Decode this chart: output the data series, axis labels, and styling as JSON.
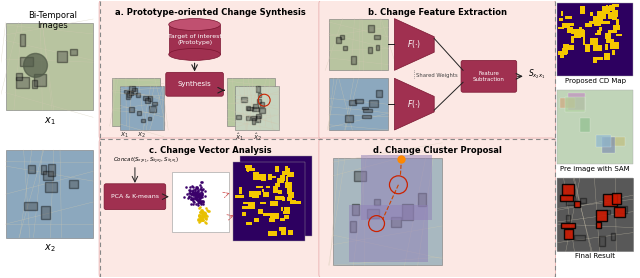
{
  "bg_color": "#ffffff",
  "panel_bg": "#fce8e4",
  "box_color": "#a03050",
  "dark_red": "#7a1530",
  "left_label": "Bi-Temporal\nImages",
  "x1_label": "$x_1$",
  "x2_label": "$x_2$",
  "panel_a_title": "a. Prototype-oriented Change Synthesis",
  "panel_b_title": "b. Change Feature Extraction",
  "panel_c_title": "c. Change Vector Analysis",
  "panel_d_title": "d. Change Cluster Proposal",
  "prototype_label": "Target of interest\n(Prototype)",
  "synthesis_label": "Synthesis",
  "shared_weights_label": "Shared Weights",
  "feature_sub_label": "Feature\nSubtraction",
  "f_label": "$F(\\cdot)$",
  "pca_label": "PCA & K-means",
  "concat_label": "$Concat(S_{x_2x_1}, S_{\\hat{x}_2x_2}, S_{\\hat{x}_1x_1})$",
  "s_label": "$S_{x_2x_1}$",
  "right_labels": [
    "Proposed CD Map",
    "Pre image with SAM",
    "Final Result"
  ],
  "dashed_gray": "#888888",
  "arrow_color": "#222222",
  "purple_color": "#2d0060",
  "yellow_color": "#f5c800",
  "sat1_color": "#b8c8a0",
  "sat2_color": "#90afc0",
  "scatter_purple": "#3a006a",
  "scatter_yellow": "#e8c000"
}
